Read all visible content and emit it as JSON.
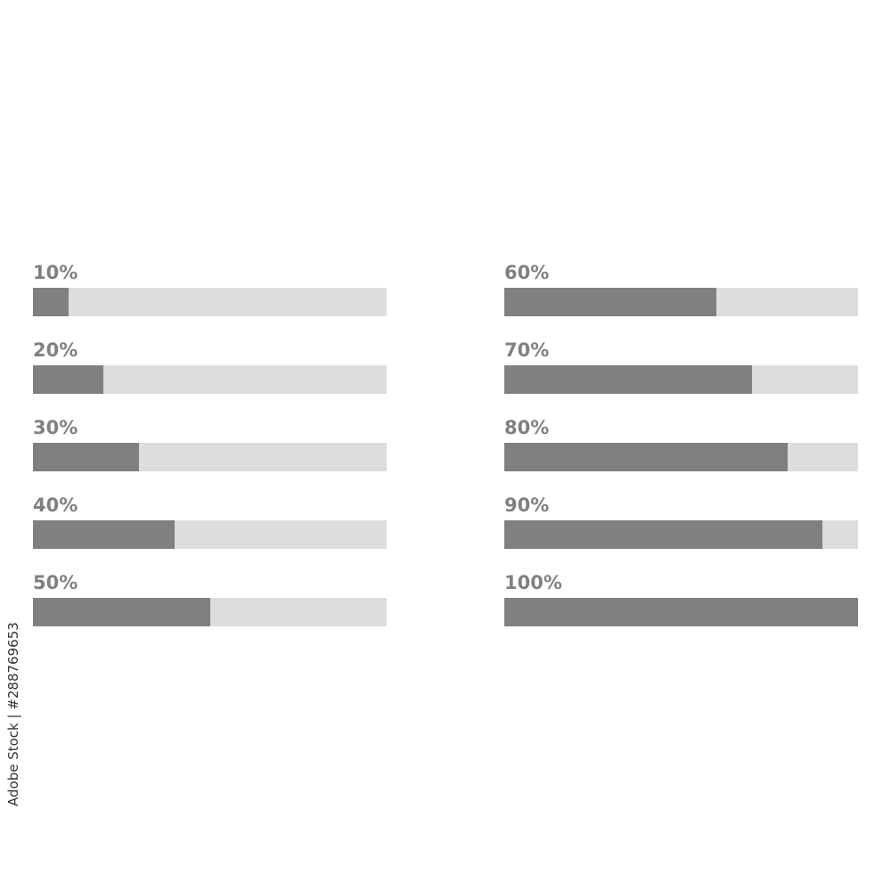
{
  "colors": {
    "fill": "#808080",
    "track": "#dddddd",
    "label": "#808080"
  },
  "columns": [
    {
      "items": [
        {
          "label": "10%",
          "value": 10
        },
        {
          "label": "20%",
          "value": 20
        },
        {
          "label": "30%",
          "value": 30
        },
        {
          "label": "40%",
          "value": 40
        },
        {
          "label": "50%",
          "value": 50
        }
      ]
    },
    {
      "items": [
        {
          "label": "60%",
          "value": 60
        },
        {
          "label": "70%",
          "value": 70
        },
        {
          "label": "80%",
          "value": 80
        },
        {
          "label": "90%",
          "value": 90
        },
        {
          "label": "100%",
          "value": 100
        }
      ]
    }
  ],
  "watermark": "Adobe Stock | #288769653"
}
